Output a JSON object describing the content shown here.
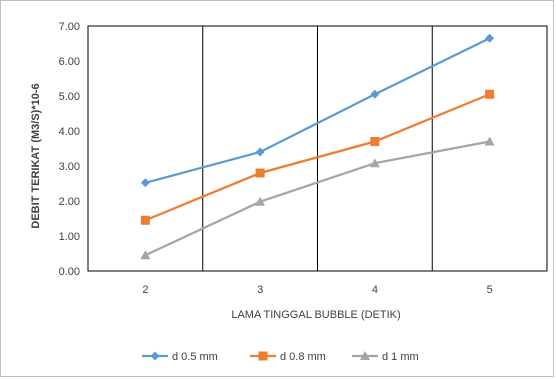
{
  "chart_data": {
    "type": "line",
    "title": "",
    "xlabel": "LAMA TINGGAL BUBBLE (DETIK)",
    "ylabel": "DEBIT TERIKAT (M3/S)*10-6",
    "categories": [
      "2",
      "3",
      "4",
      "5"
    ],
    "ylim": [
      0,
      7
    ],
    "yticks": [
      "0.00",
      "1.00",
      "2.00",
      "3.00",
      "4.00",
      "5.00",
      "6.00",
      "7.00"
    ],
    "grid": "vertical",
    "legend_position": "bottom",
    "series": [
      {
        "name": "d 0.5 mm",
        "values": [
          2.52,
          3.4,
          5.05,
          6.65
        ],
        "color": "#5b9bd5",
        "marker": "diamond"
      },
      {
        "name": "d 0.8 mm",
        "values": [
          1.45,
          2.8,
          3.7,
          5.05
        ],
        "color": "#ed7d31",
        "marker": "square"
      },
      {
        "name": "d 1 mm",
        "values": [
          0.45,
          1.98,
          3.08,
          3.7
        ],
        "color": "#a5a5a5",
        "marker": "triangle"
      }
    ]
  }
}
